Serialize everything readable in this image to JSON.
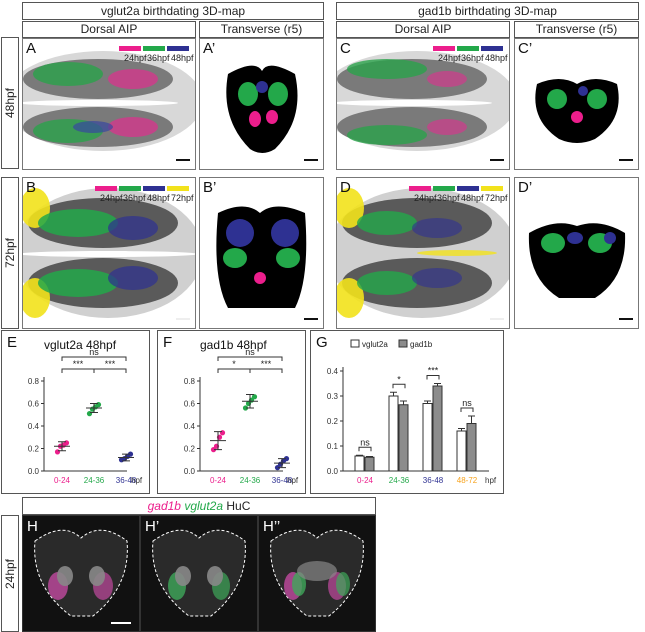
{
  "header": {
    "left_title": "vglut2a birthdating 3D-map",
    "right_title": "gad1b birthdating 3D-map",
    "dorsal_label": "Dorsal AIP",
    "transverse_label": "Transverse (r5)"
  },
  "rows": {
    "r48": "48hpf",
    "r72": "72hpf",
    "r24": "24hpf"
  },
  "panel_letters": {
    "A": "A",
    "Ap": "A’",
    "B": "B",
    "Bp": "B’",
    "C": "C",
    "Cp": "C’",
    "D": "D",
    "Dp": "D’",
    "E": "E",
    "F": "F",
    "G": "G",
    "H": "H",
    "Hp": "H’",
    "Hpp": "H’’"
  },
  "legend48": [
    "24hpf",
    "36hpf",
    "48hpf"
  ],
  "legend72": [
    "24hpf",
    "36hpf",
    "48hpf",
    "72hpf"
  ],
  "colors": {
    "magenta": "#ec1e8c",
    "green": "#23a84a",
    "blue": "#2e3192",
    "yellow": "#f2e21b",
    "orange": "#f7a21b"
  },
  "huc": {
    "gad1b": "gad1b",
    "vglut2a": "vglut2a",
    "huc": "HuC"
  },
  "chart_data": [
    {
      "type": "scatter",
      "title": "vglut2a 48hpf",
      "categories": [
        "0-24",
        "24-36",
        "36-48"
      ],
      "xunit": "hpf",
      "ylim": [
        0,
        0.8
      ],
      "yticks": [
        "0.0",
        "0.2",
        "0.4",
        "0.6",
        "0.8"
      ],
      "points": [
        [
          0.17,
          0.22,
          0.23,
          0.25
        ],
        [
          0.51,
          0.55,
          0.57,
          0.59
        ],
        [
          0.1,
          0.11,
          0.13,
          0.15
        ]
      ],
      "means": [
        0.22,
        0.56,
        0.12
      ],
      "sd": [
        0.04,
        0.04,
        0.03
      ],
      "significance": [
        {
          "pair": [
            0,
            1
          ],
          "label": "***"
        },
        {
          "pair": [
            1,
            2
          ],
          "label": "***"
        },
        {
          "pair": [
            0,
            2
          ],
          "label": "ns"
        }
      ]
    },
    {
      "type": "scatter",
      "title": "gad1b 48hpf",
      "categories": [
        "0-24",
        "24-36",
        "36-48"
      ],
      "xunit": "hpf",
      "ylim": [
        0,
        0.8
      ],
      "yticks": [
        "0.0",
        "0.2",
        "0.4",
        "0.6",
        "0.8"
      ],
      "points": [
        [
          0.19,
          0.22,
          0.3,
          0.34
        ],
        [
          0.56,
          0.6,
          0.63,
          0.66
        ],
        [
          0.03,
          0.06,
          0.09,
          0.11
        ]
      ],
      "means": [
        0.27,
        0.62,
        0.07
      ],
      "sd": [
        0.08,
        0.06,
        0.04
      ],
      "significance": [
        {
          "pair": [
            0,
            1
          ],
          "label": "*"
        },
        {
          "pair": [
            1,
            2
          ],
          "label": "***"
        },
        {
          "pair": [
            0,
            2
          ],
          "label": "ns"
        }
      ]
    },
    {
      "type": "bar",
      "categories": [
        "0-24",
        "24-36",
        "36-48",
        "48-72"
      ],
      "xunit": "hpf",
      "ylim": [
        0,
        0.4
      ],
      "yticks": [
        "0.0",
        "0.1",
        "0.2",
        "0.3",
        "0.4"
      ],
      "series": [
        {
          "name": "vglut2a",
          "values": [
            0.06,
            0.3,
            0.27,
            0.16
          ],
          "err": [
            0.003,
            0.015,
            0.01,
            0.01
          ]
        },
        {
          "name": "gad1b",
          "values": [
            0.055,
            0.265,
            0.34,
            0.19
          ],
          "err": [
            0.003,
            0.015,
            0.01,
            0.03
          ]
        }
      ],
      "significance": [
        "ns",
        "*",
        "***",
        "ns"
      ]
    }
  ]
}
